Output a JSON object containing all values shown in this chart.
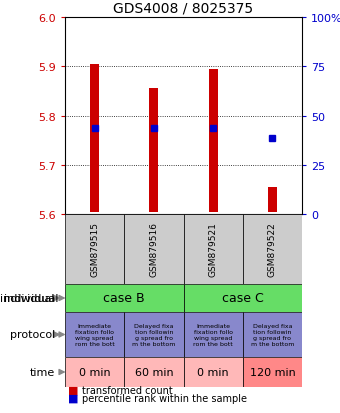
{
  "title": "GDS4008 / 8025375",
  "samples": [
    "GSM879515",
    "GSM879516",
    "GSM879521",
    "GSM879522"
  ],
  "bar_bottoms": [
    5.605,
    5.605,
    5.605,
    5.605
  ],
  "bar_tops": [
    5.905,
    5.855,
    5.895,
    5.655
  ],
  "bar_color": "#cc0000",
  "percentile_values": [
    5.775,
    5.775,
    5.775,
    5.755
  ],
  "percentile_color": "#0000cc",
  "left_ylim": [
    5.6,
    6.0
  ],
  "left_yticks": [
    5.6,
    5.7,
    5.8,
    5.9,
    6.0
  ],
  "right_yticks": [
    0,
    25,
    50,
    75,
    100
  ],
  "right_ylabels": [
    "0",
    "25",
    "50",
    "75",
    "100%"
  ],
  "left_tick_color": "#cc0000",
  "right_tick_color": "#0000cc",
  "grid_color": "#000000",
  "individual_colors": [
    "#66dd66",
    "#66dd66"
  ],
  "individual_labels": [
    "case B",
    "case C"
  ],
  "protocol_texts_0": "Immediate\nfixation follo\nwing spread\nrom the bott",
  "protocol_texts_1": "Delayed fixa\ntion followin\ng spread fro\nm the bottom",
  "protocol_color": "#8888cc",
  "time_labels": [
    "0 min",
    "60 min",
    "0 min",
    "120 min"
  ],
  "time_colors": [
    "#ffb8b8",
    "#ffb8b8",
    "#ffb8b8",
    "#ff8888"
  ],
  "sample_bg_color": "#cccccc",
  "fig_bg_color": "#ffffff",
  "legend_red_label": "transformed count",
  "legend_blue_label": "percentile rank within the sample"
}
